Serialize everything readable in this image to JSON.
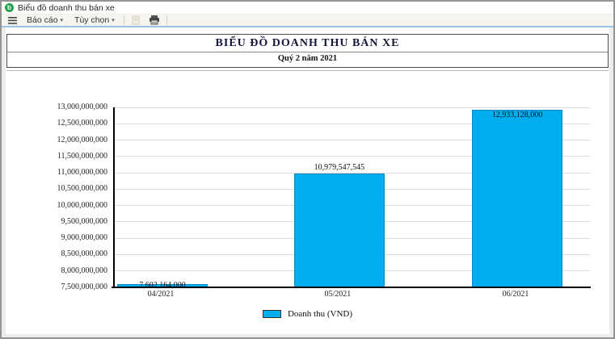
{
  "window": {
    "title": "Biểu đồ doanh thu bán xe"
  },
  "toolbar": {
    "report_menu": "Báo cáo",
    "options_menu": "Tùy chọn",
    "dropdown_caret": "▾"
  },
  "report_header": {
    "title": "BIỂU ĐỒ DOANH THU BÁN XE",
    "subtitle": "Quý 2 năm 2021"
  },
  "chart_data": {
    "type": "bar",
    "title": "BIỂU ĐỒ DOANH THU BÁN XE",
    "subtitle": "Quý 2 năm 2021",
    "categories": [
      "04/2021",
      "05/2021",
      "06/2021"
    ],
    "series": [
      {
        "name": "Doanh thu (VND)",
        "values": [
          7602164000,
          10979547545,
          12933128000
        ],
        "color": "#00aeef"
      }
    ],
    "value_labels": [
      "7,602,164,000",
      "10,979,547,545",
      "12,933,128,000"
    ],
    "ylim": [
      7500000000,
      13000000000
    ],
    "ytick_step": 500000000,
    "ytick_labels": [
      "7,500,000,000",
      "8,000,000,000",
      "8,500,000,000",
      "9,000,000,000",
      "9,500,000,000",
      "10,000,000,000",
      "10,500,000,000",
      "11,000,000,000",
      "11,500,000,000",
      "12,000,000,000",
      "12,500,000,000",
      "13,000,000,000"
    ],
    "grid": true,
    "legend_position": "bottom",
    "legend": [
      {
        "label": "Doanh thu (VND)",
        "color": "#00aeef"
      }
    ]
  },
  "colors": {
    "bar": "#00aeef",
    "bar_border": "#0c85c0",
    "axis": "#000000",
    "grid": "#dcdcdc",
    "toolbar_accent_line": "#9dc3e6",
    "app_icon": "#21a24b"
  }
}
